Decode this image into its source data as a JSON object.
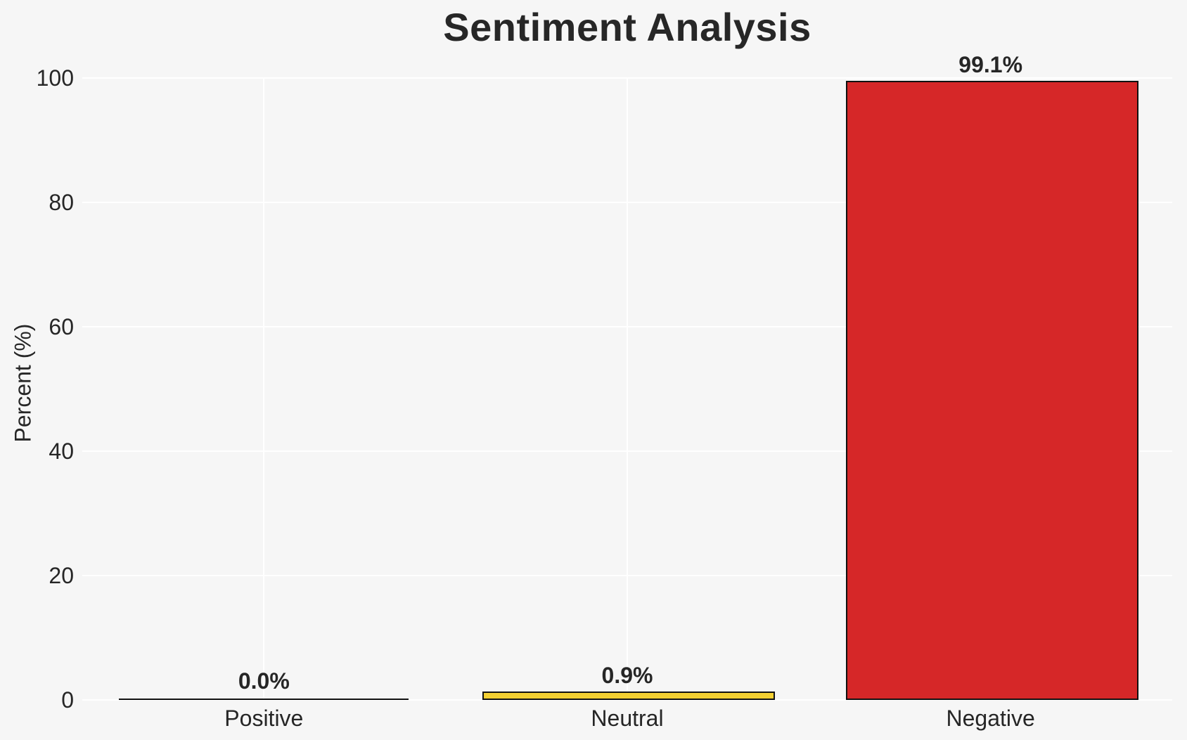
{
  "chart_data": {
    "type": "bar",
    "title": "Sentiment Analysis",
    "xlabel": "",
    "ylabel": "Percent (%)",
    "categories": [
      "Positive",
      "Neutral",
      "Negative"
    ],
    "values": [
      0.0,
      0.9,
      99.1
    ],
    "value_labels": [
      "0.0%",
      "0.9%",
      "99.1%"
    ],
    "bar_colors": [
      "none",
      "#F5D132",
      "#D62728"
    ],
    "bar_edge_color": "#111111",
    "ylim": [
      0,
      100
    ],
    "yticks": [
      0,
      20,
      40,
      60,
      80,
      100
    ],
    "grid": true,
    "gridline_color": "#ffffff",
    "background_color": "#f6f6f6",
    "text_color": "#262626",
    "legend": "none"
  }
}
